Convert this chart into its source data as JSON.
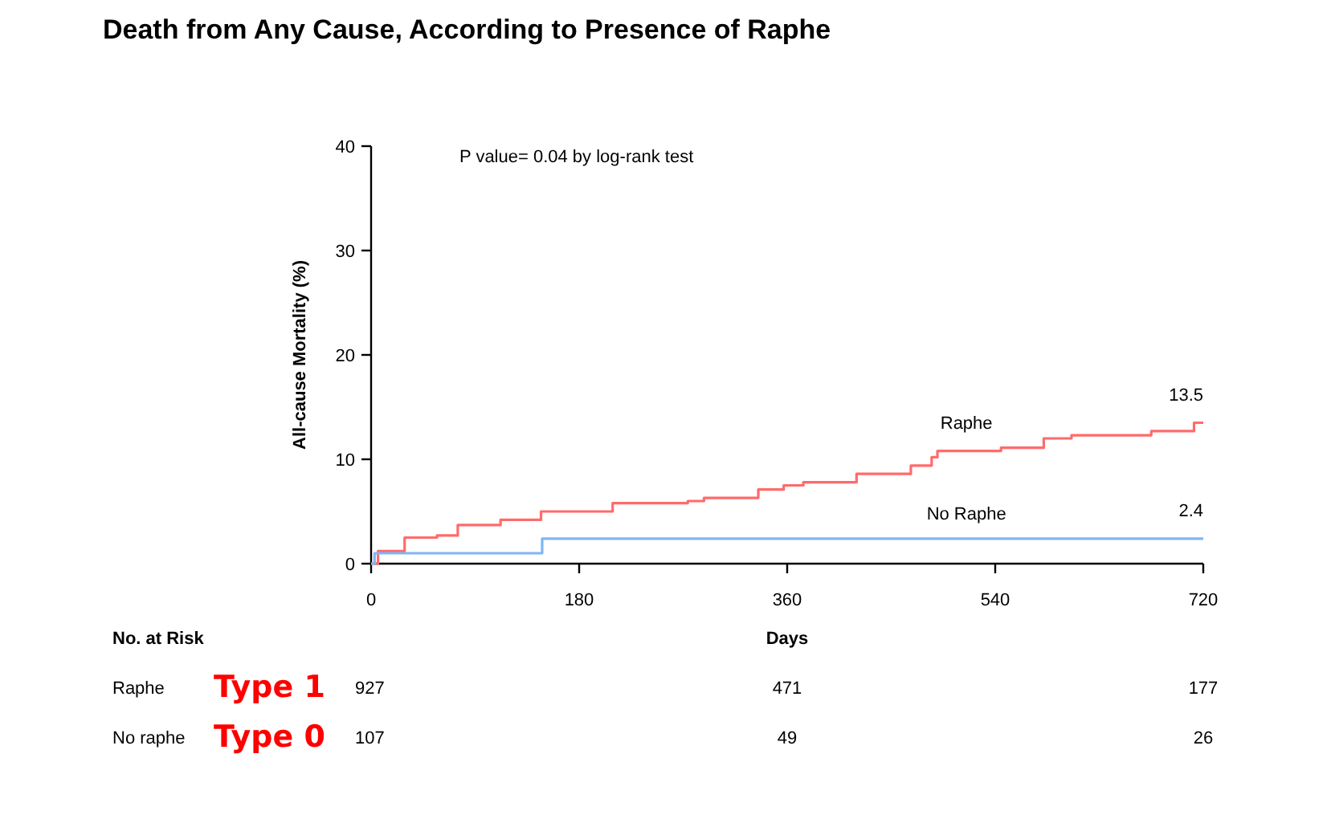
{
  "chart_data": {
    "type": "step",
    "title": "Death from Any Cause, According to Presence of Raphe",
    "xlabel": "Days",
    "ylabel": "All-cause Mortality (%)",
    "xlim": [
      0,
      720
    ],
    "xticks": [
      0,
      180,
      360,
      540,
      720
    ],
    "ylim": [
      0,
      40
    ],
    "yticks": [
      0,
      10,
      20,
      30,
      40
    ],
    "grid": false,
    "marker": "none",
    "line_style": "solid",
    "series": [
      {
        "name": "Raphe",
        "color": "#ff6b6b",
        "x": [
          0,
          6,
          29,
          57,
          75,
          112,
          147,
          209,
          274,
          288,
          335,
          357,
          374,
          420,
          467,
          485,
          490,
          545,
          582,
          606,
          675,
          712,
          720
        ],
        "values": [
          0,
          1.2,
          2.5,
          2.7,
          3.7,
          4.2,
          5.0,
          5.8,
          6.0,
          6.3,
          7.1,
          7.5,
          7.8,
          8.6,
          9.4,
          10.2,
          10.8,
          11.1,
          12.0,
          12.3,
          12.7,
          13.5,
          13.5
        ]
      },
      {
        "name": "No Raphe",
        "color": "#7fb5f5",
        "x": [
          0,
          3,
          148,
          720
        ],
        "values": [
          0,
          1.0,
          2.4,
          2.4
        ]
      }
    ],
    "annotations": [
      "P value= 0.04 by log-rank test",
      {
        "text": "13.5",
        "x": 720,
        "y": 13.5
      },
      {
        "text": "2.4",
        "x": 720,
        "y": 2.4
      },
      "No. at Risk",
      "Raphe",
      "Type 1",
      "927",
      "471",
      "177",
      "No raphe",
      "Type 0",
      "107",
      "49",
      "26"
    ]
  }
}
